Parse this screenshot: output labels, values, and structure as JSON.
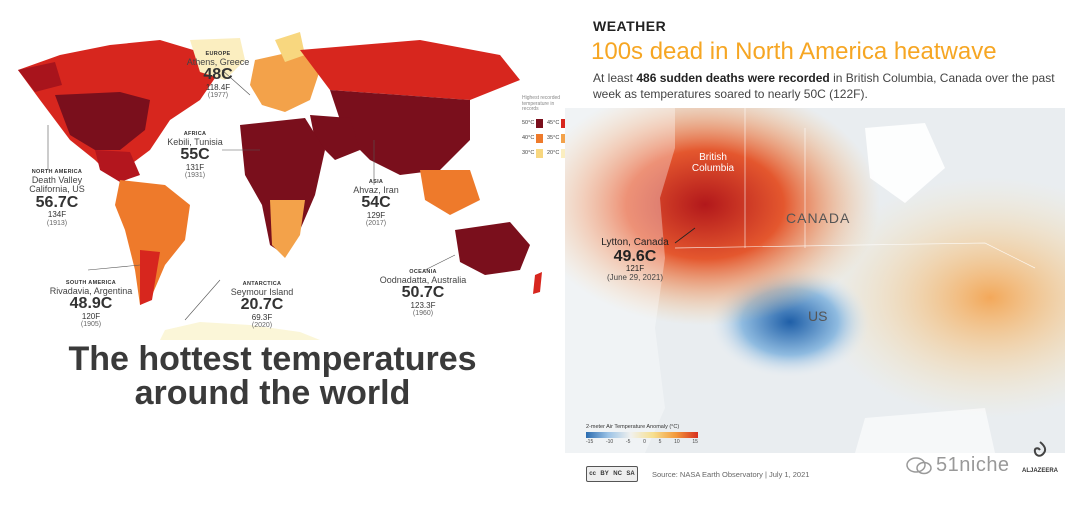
{
  "left": {
    "callouts": [
      {
        "id": "europe",
        "region": "EUROPE",
        "place": "Athens, Greece",
        "temp_c": "48C",
        "temp_f": "118.4F",
        "year": "(1977)"
      },
      {
        "id": "africa",
        "region": "AFRICA",
        "place": "Kebili, Tunisia",
        "temp_c": "55C",
        "temp_f": "131F",
        "year": "(1931)"
      },
      {
        "id": "north-america",
        "region": "NORTH AMERICA",
        "place": "Death Valley\nCalifornia, US",
        "temp_c": "56.7C",
        "temp_f": "134F",
        "year": "(1913)"
      },
      {
        "id": "asia",
        "region": "ASIA",
        "place": "Ahvaz, Iran",
        "temp_c": "54C",
        "temp_f": "129F",
        "year": "(2017)"
      },
      {
        "id": "south-america",
        "region": "SOUTH AMERICA",
        "place": "Rivadavia, Argentina",
        "temp_c": "48.9C",
        "temp_f": "120F",
        "year": "(1905)"
      },
      {
        "id": "antarctica",
        "region": "ANTARCTICA",
        "place": "Seymour Island",
        "temp_c": "20.7C",
        "temp_f": "69.3F",
        "year": "(2020)"
      },
      {
        "id": "oceania",
        "region": "OCEANIA",
        "place": "Oodnadatta, Australia",
        "temp_c": "50.7C",
        "temp_f": "123.3F",
        "year": "(1960)"
      }
    ],
    "legend": {
      "title": "Highest recorded temperature in records",
      "items": [
        {
          "label": "50°C",
          "color": "#7a0f1c"
        },
        {
          "label": "45°C",
          "color": "#d7261e"
        },
        {
          "label": "40°C",
          "color": "#ee7a2b"
        },
        {
          "label": "35°C",
          "color": "#f3a24a"
        },
        {
          "label": "30°C",
          "color": "#f8d77f"
        },
        {
          "label": "20°C",
          "color": "#fbeec0"
        }
      ]
    },
    "headline_line1": "The hottest temperatures",
    "headline_line2": "around the world"
  },
  "right": {
    "kicker": "WEATHER",
    "title": "100s dead in North America heatwave",
    "subtitle_pre": "At least ",
    "subtitle_bold": "486 sudden deaths were recorded",
    "subtitle_post": " in British Columbia, Canada over the past week as temperatures soared to nearly 50C (122F).",
    "map_labels": {
      "bc": "British Columbia",
      "canada": "CANADA",
      "us": "US"
    },
    "lytton": {
      "place": "Lytton, Canada",
      "temp_c": "49.6C",
      "temp_f": "121F",
      "date": "(June 29, 2021)"
    },
    "scale": {
      "title": "2-meter Air Temperature Anomaly (°C)",
      "ticks": [
        "-15",
        "-10",
        "-5",
        "0",
        "5",
        "10",
        "15"
      ]
    },
    "cc_badge": [
      "cc",
      "BY",
      "NC",
      "SA"
    ],
    "source": "Source: NASA Earth Observatory | July 1, 2021",
    "watermark": "51niche",
    "aj_logo": "ALJAZEERA",
    "accent_color": "#f6a623"
  }
}
